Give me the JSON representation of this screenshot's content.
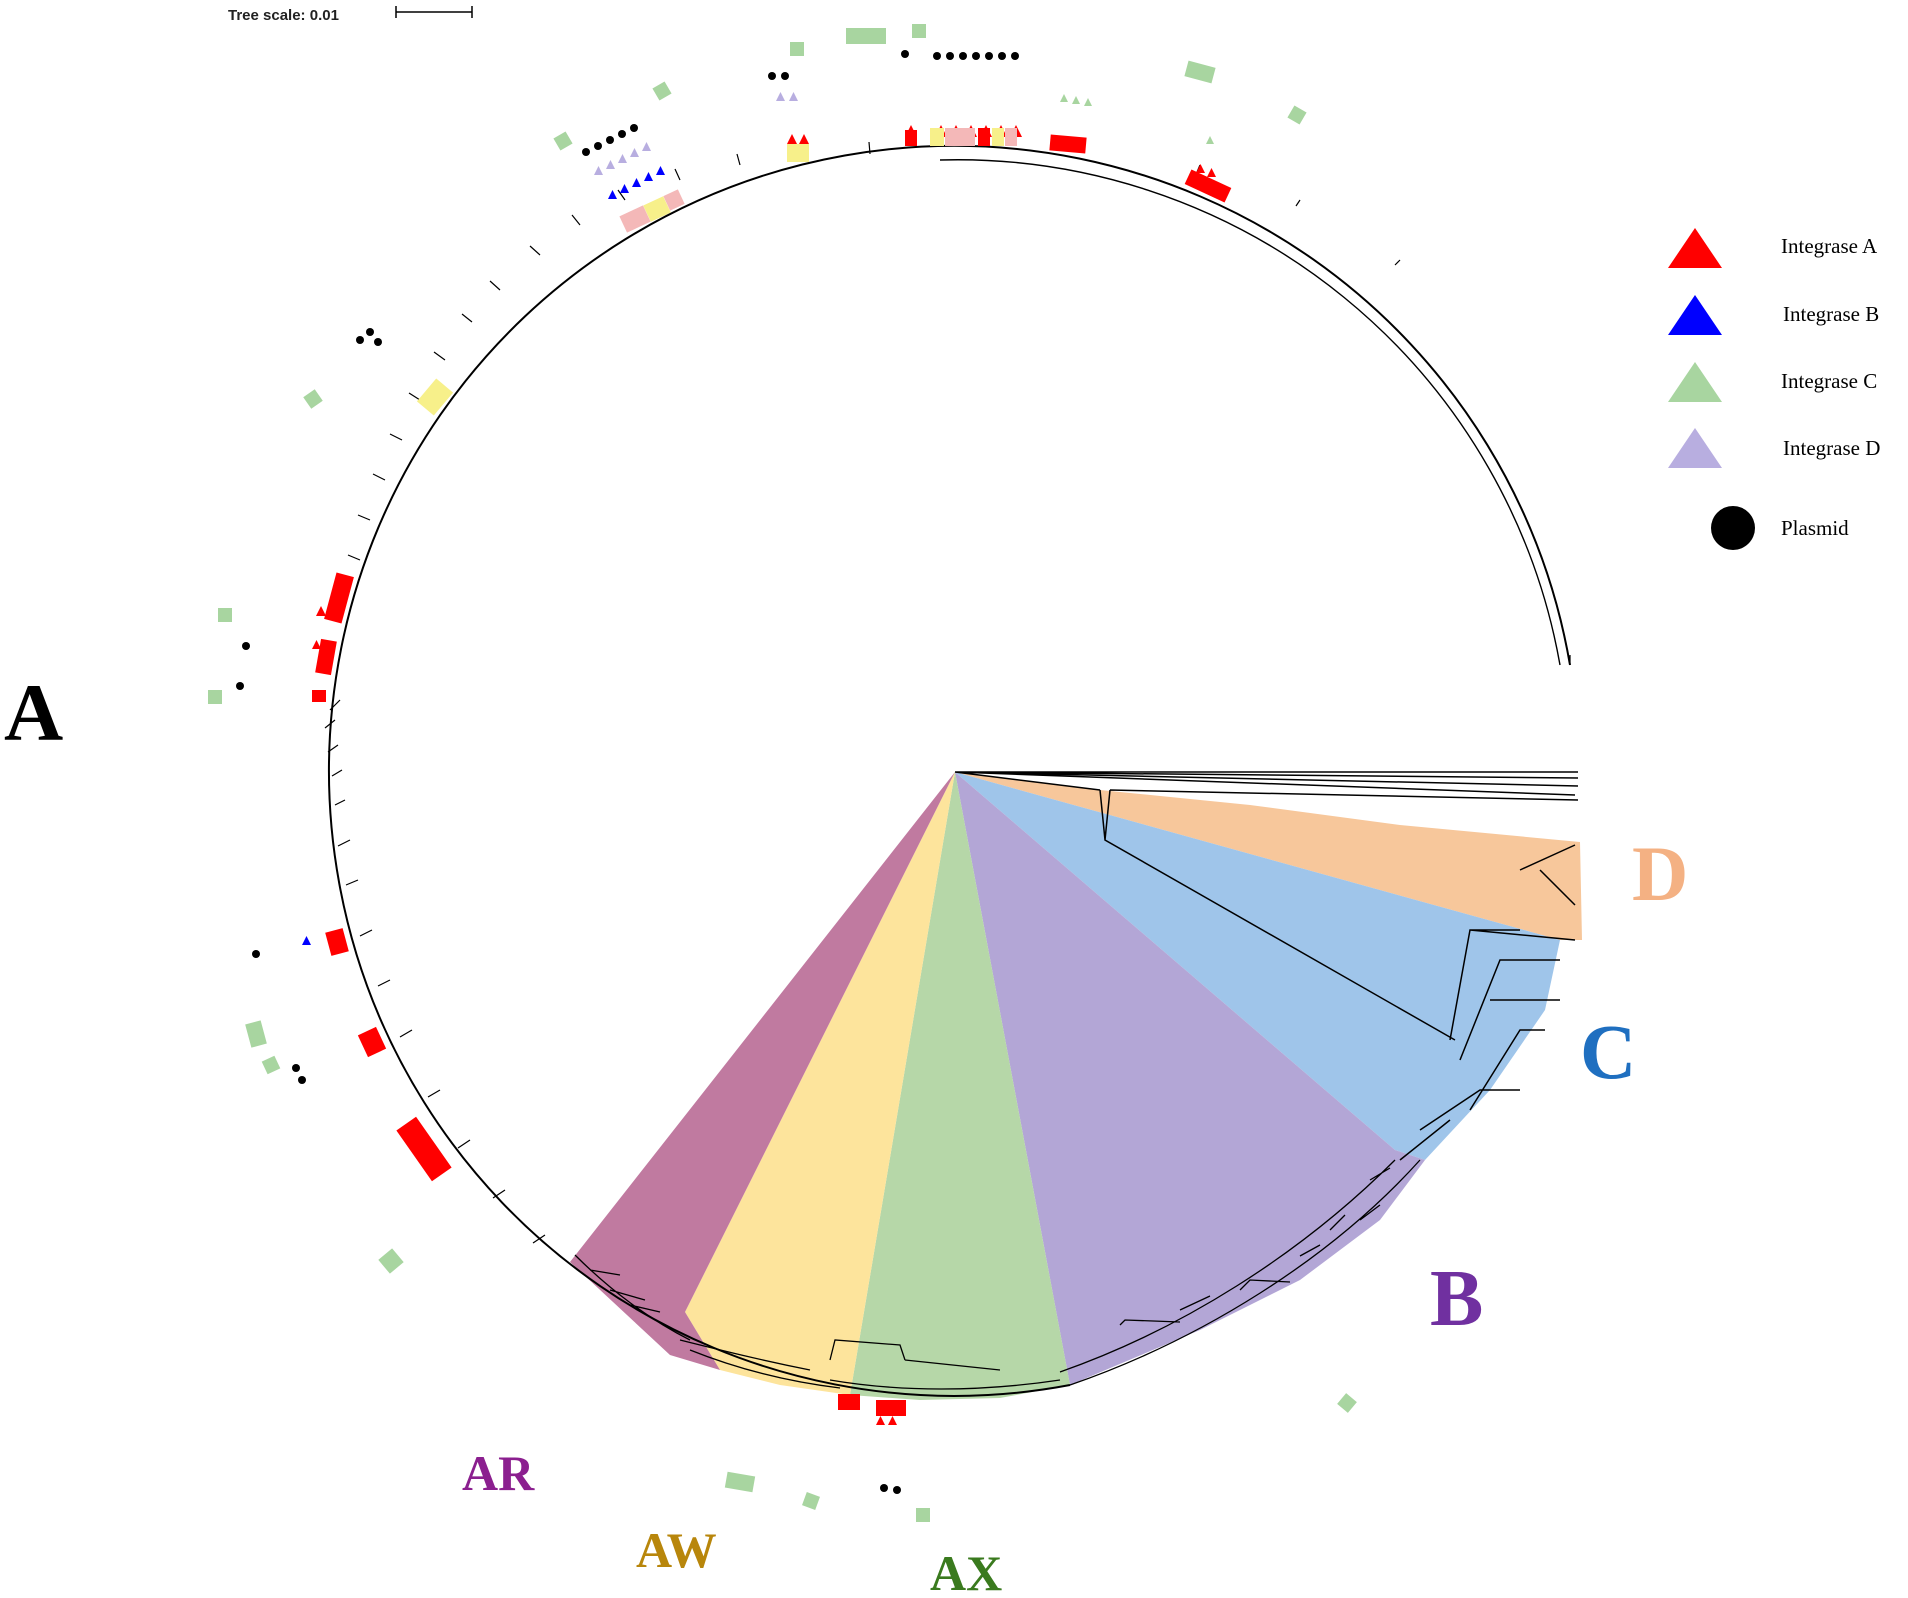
{
  "scale": {
    "label": "Tree scale: 0.01"
  },
  "legend": [
    {
      "label": "Integrase A",
      "shape": "triangle",
      "color": "#ff0000"
    },
    {
      "label": "Integrase B",
      "shape": "triangle",
      "color": "#0000ff"
    },
    {
      "label": "Integrase C",
      "shape": "triangle",
      "color": "#a8d5a0"
    },
    {
      "label": "Integrase D",
      "shape": "triangle",
      "color": "#b8aee0"
    },
    {
      "label": "Plasmid",
      "shape": "circle",
      "color": "#000000"
    }
  ],
  "clades": [
    {
      "id": "A",
      "label": "A",
      "color": "#000000"
    },
    {
      "id": "D",
      "label": "D",
      "color": "#f4b183"
    },
    {
      "id": "C",
      "label": "C",
      "color": "#1f6fc0"
    },
    {
      "id": "B",
      "label": "B",
      "color": "#7030a0"
    },
    {
      "id": "AR",
      "label": "AR",
      "color": "#8b1f8f"
    },
    {
      "id": "AW",
      "label": "AW",
      "color": "#b8860b"
    },
    {
      "id": "AX",
      "label": "AX",
      "color": "#3a7a1e"
    }
  ],
  "sector_colors": {
    "D": "#f7c79b",
    "C": "#9fc5ea",
    "B": "#b3a6d6",
    "AX": "#b6d7a8",
    "AW": "#fde49c",
    "AR": "#c07aa0"
  },
  "marker_colors": {
    "integrase_a": "#ff0000",
    "integrase_b": "#0000ff",
    "integrase_c": "#a8d5a0",
    "integrase_d": "#b8aee0",
    "plasmid": "#000000",
    "strip_yellow": "#f7f08a",
    "strip_pink": "#f4b8b8"
  }
}
